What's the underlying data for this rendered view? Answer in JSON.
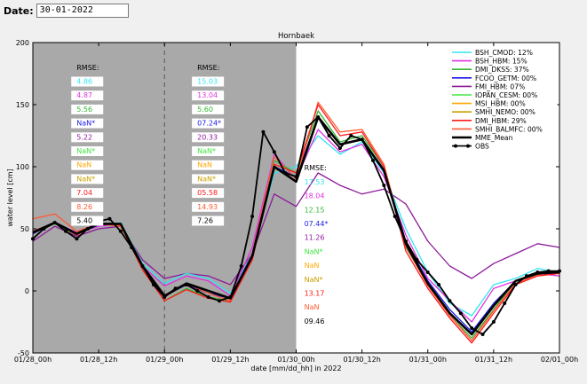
{
  "date": {
    "label": "Date:",
    "value": "30-01-2022"
  },
  "colors": {
    "BSH_CMOD": "#33e6f0",
    "BSH_HBM": "#e033e0",
    "DMI_DKSS": "#33b833",
    "FCOO_GETM": "#1a1ae6",
    "FMI_HBM": "#8c1a99",
    "IOPAN_CESM": "#40e640",
    "MSI_HBM": "#ffa600",
    "SMHI_NEMO": "#c8a000",
    "DMI_HBM": "#ff1a1a",
    "SMHI_BALMFC": "#ff5a33",
    "MME_Mean": "#000000",
    "OBS": "#000000"
  },
  "chart_data": {
    "type": "line",
    "title": "Hornbaek",
    "xlabel": "date [mm/dd_hh] in 2022",
    "ylabel": "water level [cm]",
    "xlim": [
      0,
      96
    ],
    "ylim": [
      -50,
      200
    ],
    "x_tick_positions": [
      0,
      12,
      24,
      36,
      48,
      60,
      72,
      84,
      96
    ],
    "x_tick_labels": [
      "01/28_00h",
      "01/28_12h",
      "01/29_00h",
      "01/29_12h",
      "01/30_00h",
      "01/30_12h",
      "01/31_00h",
      "01/31_12h",
      "02/01_00h"
    ],
    "y_ticks": [
      -50,
      0,
      50,
      100,
      150,
      200
    ],
    "shaded_range": [
      0,
      48
    ],
    "dashed_vline": 24,
    "rmse_blocks": [
      {
        "title": "RMSE:",
        "x_hours": 7,
        "values": [
          "4.86",
          "4.87",
          "5.56",
          "NaN*",
          "5.22",
          "NaN*",
          "NaN",
          "NaN*",
          "7.04",
          "8.26",
          "5.40"
        ]
      },
      {
        "title": "RMSE:",
        "x_hours": 29,
        "values": [
          "15.03",
          "13.04",
          "5.60",
          "07.24*",
          "20.33",
          "NaN*",
          "NaN",
          "NaN*",
          "05.58",
          "14.93",
          "7.26"
        ]
      },
      {
        "title": "RMSE:",
        "x_hours": 48.5,
        "values": [
          "17.53",
          "18.04",
          "12.15",
          "07.44*",
          "11.26",
          "NaN*",
          "NaN",
          "NaN*",
          "13.17",
          "NaN",
          "09.46"
        ]
      }
    ],
    "rmse_colors": [
      "BSH_CMOD",
      "BSH_HBM",
      "DMI_DKSS",
      "FCOO_GETM",
      "FMI_HBM",
      "IOPAN_CESM",
      "MSI_HBM",
      "SMHI_NEMO",
      "DMI_HBM",
      "SMHI_BALMFC",
      "MME_Mean"
    ],
    "legend_placement": "top-right",
    "legend": [
      {
        "key": "BSH_CMOD",
        "label": "BSH_CMOD: 12%"
      },
      {
        "key": "BSH_HBM",
        "label": "BSH_HBM: 15%"
      },
      {
        "key": "DMI_DKSS",
        "label": "DMI_DKSS: 37%"
      },
      {
        "key": "FCOO_GETM",
        "label": "FCOO_GETM: 00%"
      },
      {
        "key": "FMI_HBM",
        "label": "FMI_HBM: 07%"
      },
      {
        "key": "IOPAN_CESM",
        "label": "IOPAN_CESM: 00%"
      },
      {
        "key": "MSI_HBM",
        "label": "MSI_HBM: 00%"
      },
      {
        "key": "SMHI_NEMO",
        "label": "SMHI_NEMO: 00%"
      },
      {
        "key": "DMI_HBM",
        "label": "DMI_HBM: 29%"
      },
      {
        "key": "SMHI_BALMFC",
        "label": "SMHI_BALMFC: 00%"
      },
      {
        "key": "MME_Mean",
        "label": "MME_Mean"
      },
      {
        "key": "OBS",
        "label": "OBS"
      }
    ],
    "series": [
      {
        "name": "BSH_CMOD",
        "x": [
          0,
          4,
          8,
          12,
          16,
          20,
          24,
          28,
          32,
          36,
          40,
          44,
          48,
          52,
          56,
          60,
          64,
          68,
          72,
          76,
          80,
          84,
          88,
          92,
          96
        ],
        "y": [
          48,
          54,
          46,
          53,
          55,
          22,
          6,
          14,
          10,
          -2,
          30,
          95,
          100,
          125,
          110,
          120,
          95,
          50,
          15,
          -10,
          -20,
          5,
          10,
          18,
          15
        ]
      },
      {
        "name": "BSH_HBM",
        "x": [
          0,
          4,
          8,
          12,
          16,
          20,
          24,
          28,
          32,
          36,
          40,
          44,
          48,
          52,
          56,
          60,
          64,
          68,
          72,
          76,
          80,
          84,
          88,
          92,
          96
        ],
        "y": [
          46,
          55,
          47,
          52,
          54,
          20,
          4,
          12,
          8,
          -4,
          35,
          110,
          90,
          130,
          112,
          118,
          92,
          45,
          10,
          -8,
          -25,
          2,
          8,
          14,
          12
        ]
      },
      {
        "name": "DMI_DKSS",
        "x": [
          0,
          4,
          8,
          12,
          16,
          20,
          24,
          28,
          32,
          36,
          40,
          44,
          48,
          52,
          56,
          60,
          64,
          68,
          72,
          76,
          80,
          84,
          88,
          92,
          96
        ],
        "y": [
          47,
          54,
          45,
          55,
          52,
          18,
          -8,
          2,
          -5,
          -8,
          28,
          105,
          95,
          145,
          120,
          125,
          100,
          35,
          5,
          -20,
          -38,
          -15,
          8,
          14,
          16
        ]
      },
      {
        "name": "FCOO_GETM",
        "x": [
          0,
          4,
          8,
          12,
          16,
          20,
          24,
          28,
          32,
          36,
          40,
          44,
          48,
          52,
          56,
          60,
          64,
          68,
          72,
          76,
          80,
          84,
          88,
          92,
          96
        ],
        "y": [
          46,
          55,
          46,
          53,
          54,
          19,
          -4,
          5,
          -2,
          -6,
          30,
          100,
          92,
          140,
          118,
          122,
          98,
          40,
          8,
          -15,
          -33,
          -10,
          8,
          15,
          15
        ]
      },
      {
        "name": "FMI_HBM",
        "x": [
          0,
          4,
          8,
          12,
          16,
          20,
          24,
          28,
          32,
          36,
          40,
          44,
          48,
          52,
          56,
          60,
          64,
          68,
          72,
          76,
          80,
          84,
          88,
          92,
          96
        ],
        "y": [
          40,
          52,
          44,
          50,
          52,
          25,
          10,
          14,
          12,
          5,
          30,
          78,
          68,
          95,
          85,
          78,
          82,
          70,
          40,
          20,
          10,
          22,
          30,
          38,
          35
        ]
      },
      {
        "name": "DMI_HBM",
        "x": [
          0,
          4,
          8,
          12,
          16,
          20,
          24,
          28,
          32,
          36,
          40,
          44,
          48,
          52,
          56,
          60,
          64,
          68,
          72,
          76,
          80,
          84,
          88,
          92,
          96
        ],
        "y": [
          48,
          55,
          45,
          55,
          53,
          17,
          -8,
          1,
          -6,
          -9,
          25,
          102,
          95,
          150,
          125,
          128,
          100,
          32,
          2,
          -22,
          -42,
          -18,
          5,
          12,
          14
        ]
      },
      {
        "name": "SMHI_BALMFC",
        "x": [
          0,
          4,
          8,
          12,
          16,
          20,
          24,
          28,
          32,
          36,
          40,
          44,
          48,
          52,
          56,
          60,
          64,
          68,
          72,
          76,
          80,
          84,
          88,
          92,
          96
        ],
        "y": [
          58,
          62,
          48,
          54,
          52,
          20,
          -5,
          6,
          -2,
          -8,
          30,
          108,
          90,
          152,
          128,
          130,
          102,
          36,
          4,
          -20,
          -40,
          -16,
          6,
          13,
          15
        ]
      },
      {
        "name": "MME_Mean",
        "x": [
          0,
          4,
          8,
          12,
          16,
          20,
          24,
          28,
          32,
          36,
          40,
          44,
          48,
          52,
          56,
          60,
          64,
          68,
          72,
          76,
          80,
          84,
          88,
          92,
          96
        ],
        "y": [
          47,
          55,
          46,
          54,
          54,
          20,
          -4,
          6,
          0,
          -6,
          28,
          100,
          88,
          140,
          118,
          122,
          97,
          38,
          6,
          -18,
          -35,
          -12,
          8,
          14,
          15
        ]
      },
      {
        "name": "OBS",
        "x": [
          0,
          2,
          4,
          6,
          8,
          10,
          12,
          14,
          16,
          18,
          20,
          22,
          24,
          26,
          28,
          30,
          32,
          34,
          36,
          38,
          40,
          42,
          44,
          46,
          48,
          50,
          52,
          54,
          56,
          58,
          60,
          62,
          64,
          66,
          68,
          70,
          72,
          74,
          76,
          78,
          80,
          82,
          84,
          86,
          88,
          90,
          92,
          94,
          96
        ],
        "y": [
          42,
          50,
          55,
          48,
          42,
          50,
          56,
          58,
          48,
          35,
          20,
          5,
          -5,
          2,
          5,
          0,
          -5,
          -8,
          -5,
          20,
          60,
          128,
          112,
          95,
          92,
          132,
          140,
          125,
          115,
          125,
          122,
          105,
          85,
          60,
          40,
          25,
          15,
          5,
          -8,
          -18,
          -30,
          -35,
          -25,
          -10,
          5,
          12,
          15,
          16,
          16
        ]
      }
    ]
  }
}
